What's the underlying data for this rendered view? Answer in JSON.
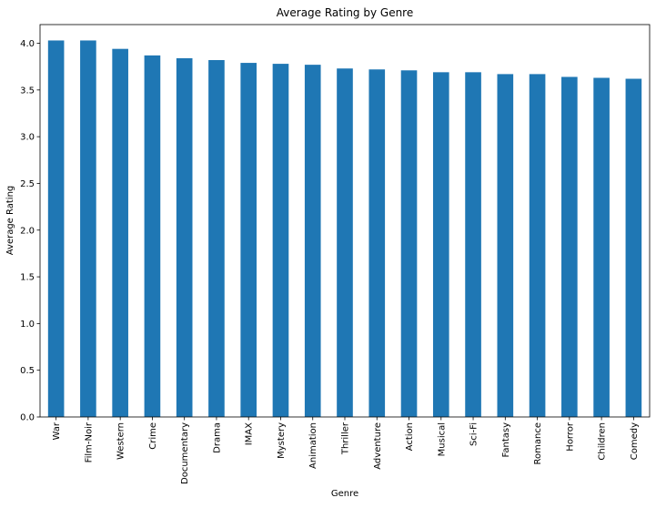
{
  "chart_data": {
    "type": "bar",
    "title": "Average Rating by Genre",
    "xlabel": "Genre",
    "ylabel": "Average Rating",
    "categories": [
      "War",
      "Film-Noir",
      "Western",
      "Crime",
      "Documentary",
      "Drama",
      "IMAX",
      "Mystery",
      "Animation",
      "Thriller",
      "Adventure",
      "Action",
      "Musical",
      "Sci-Fi",
      "Fantasy",
      "Romance",
      "Horror",
      "Children",
      "Comedy"
    ],
    "values": [
      4.03,
      4.03,
      3.94,
      3.87,
      3.84,
      3.82,
      3.79,
      3.78,
      3.77,
      3.73,
      3.72,
      3.71,
      3.69,
      3.69,
      3.67,
      3.67,
      3.64,
      3.63,
      3.62
    ],
    "ylim": [
      0,
      4.2
    ],
    "yticks": [
      "0.0",
      "0.5",
      "1.0",
      "1.5",
      "2.0",
      "2.5",
      "3.0",
      "3.5",
      "4.0"
    ],
    "grid": false,
    "legend": "none",
    "colors": {
      "bar": "#1f77b4",
      "axis": "#000000",
      "background": "#ffffff"
    }
  }
}
